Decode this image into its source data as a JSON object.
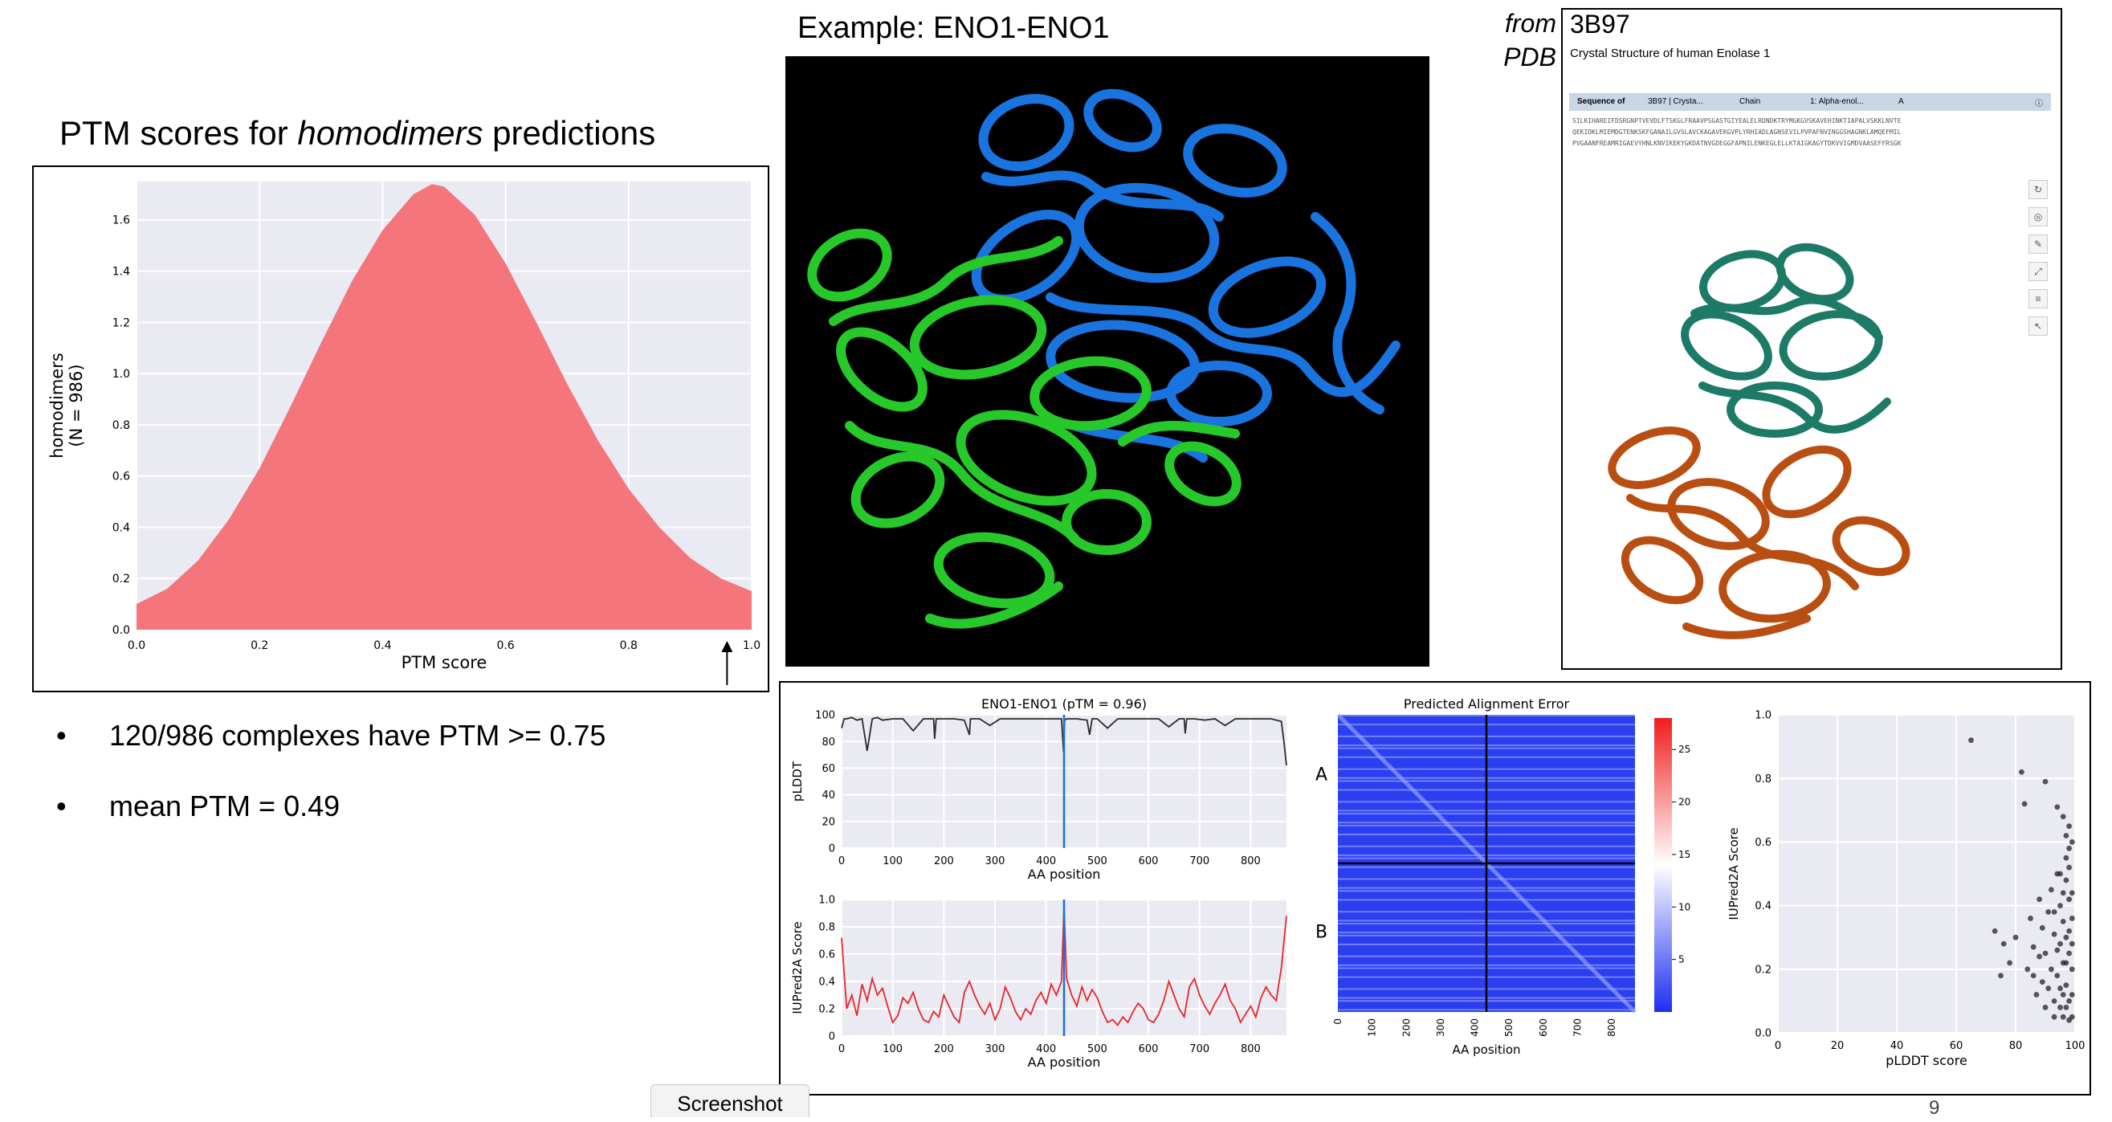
{
  "slide": {
    "title_prefix": "PTM scores for ",
    "title_emph": "homodimers",
    "title_suffix": " predictions",
    "bullets": [
      "120/986 complexes have PTM >= 0.75",
      "mean PTM = 0.49"
    ],
    "example_title": "Example: ENO1-ENO1",
    "pdb_from_1": "from",
    "pdb_from_2": "PDB",
    "pdb_id": "3B97",
    "pdb_subtitle": "Crystal Structure of human Enolase 1",
    "pdb_seqbar": [
      "Sequence of",
      "3B97 | Crysta...",
      "Chain",
      "1: Alpha-enol...",
      "A"
    ],
    "pdb_seq_lines": [
      "SILKIHAREIFDSRGNPTVEVDLFTSKGLFRAAVPSGASTGIYEALELRDNDKTRYMGKGVSKAVEHINKTIAPALVSKKLNVTE",
      "QEKIDKLMIEMDGTENKSKFGANAILGVSLAVCKAGAVEKGVPLYRHIADLAGNSEVILPVPAFNVINGGSHAGNKLAMQEFMIL",
      "PVGAANFREAMRIGAEVYHNLKNVIKEKYGKDATNVGDEGGFAPNILENKEGLELLKTAIGKAGYTDKVVIGMDVAASEFFRSGK"
    ],
    "screenshot_tab": "Screenshot",
    "page_number": "9"
  },
  "colors": {
    "density_fill": "#f5757c",
    "chart_bg": "#eaeaf2",
    "plddt_line": "#2b2b2b",
    "iupred_line": "#e8252a",
    "marker_line": "#1f6fd6",
    "chain_blue": "#1a74e0",
    "chain_green": "#27c92a",
    "pdb_teal": "#1d7a66",
    "pdb_orange": "#b84e12"
  },
  "chart_data": [
    {
      "type": "area",
      "name": "ptm-density",
      "title": "",
      "xlabel": "PTM score",
      "ylabel_line1": "homodimers",
      "ylabel_line2": "(N = 986)",
      "xlim": [
        0,
        1
      ],
      "ylim": [
        0,
        1.75
      ],
      "xticks": [
        0.0,
        0.2,
        0.4,
        0.6,
        0.8,
        1.0
      ],
      "xtick_labels": [
        "0.0",
        "0.2",
        "0.4",
        "0.6",
        "0.8",
        "1.0"
      ],
      "yticks": [
        0,
        0.2,
        0.4,
        0.6,
        0.8,
        1.0,
        1.2,
        1.4,
        1.6
      ],
      "ytick_labels": [
        "0.0",
        "0.2",
        "0.4",
        "0.6",
        "0.8",
        "1.0",
        "1.2",
        "1.4",
        "1.6"
      ],
      "x": [
        0.0,
        0.05,
        0.1,
        0.15,
        0.2,
        0.25,
        0.3,
        0.35,
        0.4,
        0.45,
        0.48,
        0.5,
        0.55,
        0.6,
        0.65,
        0.7,
        0.75,
        0.8,
        0.85,
        0.9,
        0.95,
        1.0
      ],
      "y": [
        0.1,
        0.16,
        0.27,
        0.43,
        0.63,
        0.87,
        1.12,
        1.36,
        1.56,
        1.7,
        1.74,
        1.73,
        1.62,
        1.43,
        1.2,
        0.96,
        0.74,
        0.55,
        0.4,
        0.28,
        0.2,
        0.15
      ],
      "annotation": {
        "type": "arrow",
        "x": 0.96
      },
      "grid": true
    },
    {
      "type": "line",
      "name": "plddt",
      "title": "ENO1-ENO1 (pTM = 0.96)",
      "xlabel": "AA position",
      "ylabel": "pLDDT",
      "xlim": [
        0,
        870
      ],
      "ylim": [
        0,
        100
      ],
      "xticks": [
        0,
        100,
        200,
        300,
        400,
        500,
        600,
        700,
        800
      ],
      "xtick_labels": [
        "0",
        "100",
        "200",
        "300",
        "400",
        "500",
        "600",
        "700",
        "800"
      ],
      "yticks": [
        0,
        20,
        40,
        60,
        80,
        100
      ],
      "ytick_labels": [
        "0",
        "20",
        "40",
        "60",
        "80",
        "100"
      ],
      "marker_x": 435,
      "x": [
        0,
        5,
        10,
        20,
        30,
        40,
        50,
        60,
        70,
        80,
        100,
        120,
        140,
        160,
        180,
        182,
        185,
        200,
        220,
        240,
        250,
        252,
        255,
        270,
        290,
        310,
        330,
        350,
        380,
        400,
        420,
        430,
        434,
        436,
        440,
        460,
        480,
        485,
        490,
        500,
        520,
        540,
        560,
        580,
        600,
        620,
        640,
        660,
        670,
        672,
        675,
        690,
        710,
        730,
        750,
        770,
        800,
        820,
        840,
        850,
        860,
        865,
        870
      ],
      "y": [
        90,
        97,
        97,
        98,
        96,
        97,
        73,
        97,
        98,
        96,
        97,
        97,
        88,
        97,
        97,
        82,
        97,
        97,
        97,
        96,
        85,
        97,
        97,
        97,
        92,
        97,
        97,
        97,
        97,
        97,
        97,
        97,
        72,
        96,
        97,
        97,
        96,
        85,
        97,
        97,
        90,
        97,
        97,
        97,
        97,
        97,
        91,
        97,
        97,
        86,
        97,
        97,
        96,
        97,
        92,
        97,
        97,
        97,
        97,
        96,
        95,
        80,
        62
      ]
    },
    {
      "type": "line",
      "name": "iupred2a",
      "title": "",
      "xlabel": "AA position",
      "ylabel": "IUPred2A Score",
      "xlim": [
        0,
        870
      ],
      "ylim": [
        0,
        1.0
      ],
      "xticks": [
        0,
        100,
        200,
        300,
        400,
        500,
        600,
        700,
        800
      ],
      "xtick_labels": [
        "0",
        "100",
        "200",
        "300",
        "400",
        "500",
        "600",
        "700",
        "800"
      ],
      "yticks": [
        0,
        0.2,
        0.4,
        0.6,
        0.8,
        1.0
      ],
      "ytick_labels": [
        "0",
        "0.2",
        "0.4",
        "0.6",
        "0.8",
        "1.0"
      ],
      "marker_x": 435,
      "x": [
        0,
        10,
        20,
        30,
        40,
        50,
        60,
        70,
        80,
        90,
        100,
        110,
        120,
        130,
        140,
        150,
        160,
        170,
        180,
        190,
        200,
        210,
        220,
        230,
        240,
        250,
        260,
        270,
        280,
        290,
        300,
        310,
        320,
        330,
        340,
        350,
        360,
        370,
        380,
        390,
        400,
        410,
        420,
        430,
        435,
        440,
        450,
        460,
        470,
        480,
        490,
        500,
        510,
        520,
        530,
        540,
        550,
        560,
        570,
        580,
        590,
        600,
        610,
        620,
        630,
        640,
        650,
        660,
        670,
        680,
        690,
        700,
        710,
        720,
        730,
        740,
        750,
        760,
        770,
        780,
        790,
        800,
        810,
        820,
        830,
        840,
        850,
        860,
        870
      ],
      "y": [
        0.72,
        0.2,
        0.3,
        0.15,
        0.38,
        0.26,
        0.42,
        0.3,
        0.35,
        0.22,
        0.1,
        0.15,
        0.28,
        0.24,
        0.32,
        0.2,
        0.12,
        0.1,
        0.18,
        0.14,
        0.3,
        0.22,
        0.14,
        0.1,
        0.32,
        0.4,
        0.3,
        0.22,
        0.16,
        0.24,
        0.12,
        0.2,
        0.36,
        0.28,
        0.18,
        0.12,
        0.2,
        0.16,
        0.26,
        0.32,
        0.24,
        0.38,
        0.3,
        0.4,
        0.95,
        0.42,
        0.3,
        0.22,
        0.36,
        0.26,
        0.34,
        0.28,
        0.18,
        0.1,
        0.12,
        0.08,
        0.14,
        0.1,
        0.18,
        0.24,
        0.2,
        0.12,
        0.1,
        0.16,
        0.26,
        0.4,
        0.3,
        0.2,
        0.14,
        0.36,
        0.42,
        0.3,
        0.22,
        0.16,
        0.24,
        0.3,
        0.38,
        0.26,
        0.2,
        0.1,
        0.16,
        0.22,
        0.14,
        0.28,
        0.36,
        0.3,
        0.26,
        0.5,
        0.88
      ]
    },
    {
      "type": "heatmap",
      "name": "predicted-alignment-error",
      "title": "Predicted Alignment Error",
      "xlabel": "AA position",
      "ylabel": "AA position",
      "row_labels": [
        "A",
        "B"
      ],
      "xtick_labels": [
        "0",
        "100",
        "200",
        "300",
        "400",
        "500",
        "600",
        "700",
        "800"
      ],
      "colorbar_ticks": [
        5,
        10,
        15,
        20,
        25
      ],
      "colorbar_range": [
        0,
        28
      ],
      "chain_boundary": 434,
      "length": 868
    },
    {
      "type": "scatter",
      "name": "iupred-vs-plddt",
      "title": "",
      "xlabel": "pLDDT score",
      "ylabel": "IUPred2A Score",
      "xlim": [
        0,
        100
      ],
      "ylim": [
        0,
        1.0
      ],
      "xticks": [
        0,
        20,
        40,
        60,
        80,
        100
      ],
      "xtick_labels": [
        "0",
        "20",
        "40",
        "60",
        "80",
        "100"
      ],
      "yticks": [
        0,
        0.2,
        0.4,
        0.6,
        0.8,
        1.0
      ],
      "ytick_labels": [
        "0.0",
        "0.2",
        "0.4",
        "0.6",
        "0.8",
        "1.0"
      ],
      "points": [
        [
          65,
          0.92
        ],
        [
          82,
          0.82
        ],
        [
          90,
          0.79
        ],
        [
          83,
          0.72
        ],
        [
          94,
          0.71
        ],
        [
          96,
          0.68
        ],
        [
          97,
          0.62
        ],
        [
          98,
          0.58
        ],
        [
          73,
          0.32
        ],
        [
          76,
          0.28
        ],
        [
          75,
          0.18
        ],
        [
          78,
          0.22
        ],
        [
          80,
          0.3
        ],
        [
          85,
          0.36
        ],
        [
          86,
          0.27
        ],
        [
          88,
          0.42
        ],
        [
          89,
          0.33
        ],
        [
          90,
          0.25
        ],
        [
          91,
          0.38
        ],
        [
          92,
          0.45
        ],
        [
          93,
          0.31
        ],
        [
          94,
          0.5
        ],
        [
          95,
          0.28
        ],
        [
          95,
          0.4
        ],
        [
          96,
          0.35
        ],
        [
          96,
          0.22
        ],
        [
          97,
          0.48
        ],
        [
          97,
          0.3
        ],
        [
          97,
          0.15
        ],
        [
          98,
          0.42
        ],
        [
          98,
          0.25
        ],
        [
          98,
          0.1
        ],
        [
          99,
          0.36
        ],
        [
          99,
          0.2
        ],
        [
          99,
          0.05
        ],
        [
          96,
          0.12
        ],
        [
          97,
          0.08
        ],
        [
          94,
          0.18
        ],
        [
          93,
          0.1
        ],
        [
          95,
          0.14
        ],
        [
          98,
          0.32
        ],
        [
          99,
          0.28
        ],
        [
          99,
          0.44
        ],
        [
          98,
          0.52
        ],
        [
          97,
          0.55
        ],
        [
          92,
          0.2
        ],
        [
          91,
          0.14
        ],
        [
          89,
          0.16
        ],
        [
          88,
          0.24
        ],
        [
          87,
          0.12
        ],
        [
          96,
          0.05
        ],
        [
          98,
          0.04
        ],
        [
          99,
          0.12
        ],
        [
          97,
          0.22
        ],
        [
          95,
          0.08
        ],
        [
          94,
          0.26
        ],
        [
          93,
          0.38
        ],
        [
          90,
          0.08
        ],
        [
          86,
          0.18
        ],
        [
          84,
          0.2
        ],
        [
          99,
          0.6
        ],
        [
          98,
          0.65
        ],
        [
          96,
          0.44
        ],
        [
          95,
          0.5
        ],
        [
          93,
          0.05
        ]
      ]
    }
  ]
}
